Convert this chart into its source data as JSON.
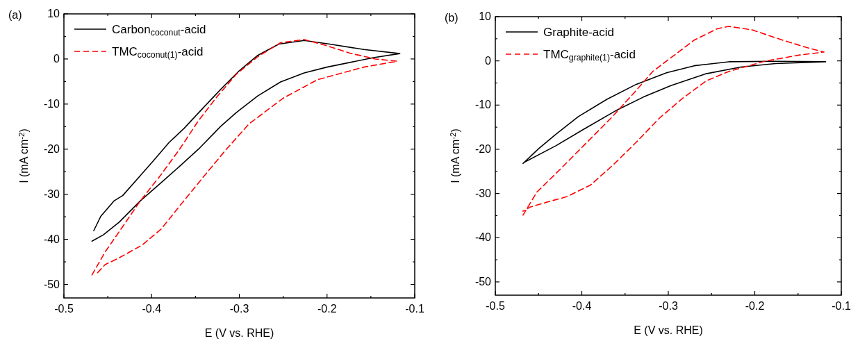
{
  "chart_data": [
    {
      "type": "line",
      "title": "(a)",
      "xlabel": "E (V vs. RHE)",
      "ylabel": "I (mA cm$^{-2}$)",
      "xlim": [
        -0.5,
        -0.1
      ],
      "ylim": [
        -53,
        10
      ],
      "xticks": [
        -0.5,
        {
          "value": -0.45,
          "label": null
        },
        -0.4,
        {
          "value": -0.35,
          "label": null
        },
        -0.3,
        {
          "value": -0.25,
          "label": null
        },
        -0.2,
        {
          "value": -0.15,
          "label": null
        },
        -0.1
      ],
      "yticks": [
        10,
        {
          "value": 5,
          "label": null
        },
        0,
        {
          "value": -5,
          "label": null
        },
        -10,
        {
          "value": -15,
          "label": null
        },
        -20,
        {
          "value": -25,
          "label": null
        },
        -30,
        {
          "value": -35,
          "label": null
        },
        -40,
        {
          "value": -45,
          "label": null
        },
        -50
      ],
      "legend": "top left",
      "grid": false,
      "series": [
        {
          "name": "Carbon$_{coconut}$-acid",
          "color": "#000000",
          "line_style": "solid",
          "x": [
            -0.466,
            -0.458,
            -0.443,
            -0.433,
            -0.413,
            -0.399,
            -0.38,
            -0.363,
            -0.342,
            -0.321,
            -0.3,
            -0.279,
            -0.255,
            -0.226,
            -0.197,
            -0.158,
            -0.117,
            -0.147,
            -0.2,
            -0.226,
            -0.253,
            -0.279,
            -0.303,
            -0.321,
            -0.345,
            -0.368,
            -0.389,
            -0.413,
            -0.437,
            -0.455,
            -0.468
          ],
          "values": [
            -38.1,
            -34.9,
            -31.5,
            -30.3,
            -25.9,
            -22.8,
            -18.5,
            -15.4,
            -11,
            -6.7,
            -2.6,
            0.8,
            3.3,
            4.1,
            3.3,
            2.1,
            1.2,
            0.3,
            -1.8,
            -3.1,
            -5.1,
            -8.2,
            -11.8,
            -14.9,
            -19.7,
            -23.8,
            -27.4,
            -31.5,
            -36.2,
            -39,
            -40.4
          ]
        },
        {
          "name": "TMC$_{coconut(1)}$-acid",
          "color": "#ff0000",
          "line_style": "dashed",
          "x": [
            -0.468,
            -0.453,
            -0.432,
            -0.413,
            -0.389,
            -0.368,
            -0.347,
            -0.326,
            -0.303,
            -0.279,
            -0.253,
            -0.226,
            -0.203,
            -0.174,
            -0.145,
            -0.12,
            -0.158,
            -0.211,
            -0.25,
            -0.289,
            -0.316,
            -0.342,
            -0.368,
            -0.389,
            -0.411,
            -0.437,
            -0.453,
            -0.464
          ],
          "values": [
            -47.9,
            -42.8,
            -36.9,
            -31.5,
            -25.6,
            -20,
            -13.8,
            -8.5,
            -3.3,
            0.5,
            3.6,
            4.3,
            3.1,
            1.3,
            0,
            -0.5,
            -1.8,
            -4.6,
            -8.7,
            -14.4,
            -20.3,
            -26.4,
            -32.6,
            -37.7,
            -41.3,
            -44.1,
            -45.6,
            -47.9
          ]
        }
      ]
    },
    {
      "type": "line",
      "title": "(b)",
      "xlabel": "E (V vs. RHE)",
      "ylabel": "I (mA cm$^{-2}$)",
      "xlim": [
        -0.5,
        -0.1
      ],
      "ylim": [
        -53,
        10
      ],
      "xticks": [
        -0.5,
        {
          "value": -0.45,
          "label": null
        },
        -0.4,
        {
          "value": -0.35,
          "label": null
        },
        -0.3,
        {
          "value": -0.25,
          "label": null
        },
        -0.2,
        {
          "value": -0.15,
          "label": null
        },
        -0.1
      ],
      "yticks": [
        10,
        {
          "value": 5,
          "label": null
        },
        0,
        {
          "value": -5,
          "label": null
        },
        -10,
        {
          "value": -15,
          "label": null
        },
        -20,
        {
          "value": -25,
          "label": null
        },
        -30,
        {
          "value": -35,
          "label": null
        },
        -40,
        {
          "value": -45,
          "label": null
        },
        -50
      ],
      "legend": "top left",
      "grid": false,
      "series": [
        {
          "name": "Graphite-acid",
          "color": "#000000",
          "line_style": "solid",
          "x": [
            -0.468,
            -0.449,
            -0.43,
            -0.404,
            -0.371,
            -0.337,
            -0.302,
            -0.27,
            -0.23,
            -0.176,
            -0.118,
            -0.176,
            -0.216,
            -0.256,
            -0.297,
            -0.329,
            -0.361,
            -0.398,
            -0.43,
            -0.466
          ],
          "values": [
            -23.2,
            -19.7,
            -16.6,
            -12.6,
            -8.7,
            -5.3,
            -2.7,
            -1.1,
            -0.2,
            -0.1,
            -0.2,
            -0.6,
            -1.4,
            -2.9,
            -5.6,
            -8.2,
            -11.3,
            -15.5,
            -19.2,
            -22.9
          ]
        },
        {
          "name": "TMC$_{graphite(1)}$-acid",
          "color": "#ff0000",
          "line_style": "dashed",
          "x": [
            -0.468,
            -0.452,
            -0.43,
            -0.398,
            -0.366,
            -0.339,
            -0.318,
            -0.297,
            -0.27,
            -0.243,
            -0.23,
            -0.203,
            -0.168,
            -0.136,
            -0.12,
            -0.149,
            -0.189,
            -0.23,
            -0.256,
            -0.283,
            -0.31,
            -0.337,
            -0.363,
            -0.39,
            -0.417,
            -0.441,
            -0.46,
            -0.468
          ],
          "values": [
            -34.9,
            -29.7,
            -25.5,
            -19.2,
            -12.9,
            -7.1,
            -2.4,
            0.7,
            4.7,
            7.3,
            7.8,
            7,
            4.7,
            2.8,
            2,
            1.3,
            -0.1,
            -2.4,
            -4.5,
            -8.4,
            -12.9,
            -18.4,
            -23.4,
            -28.1,
            -30.7,
            -32,
            -33.1,
            -34
          ]
        }
      ]
    }
  ]
}
